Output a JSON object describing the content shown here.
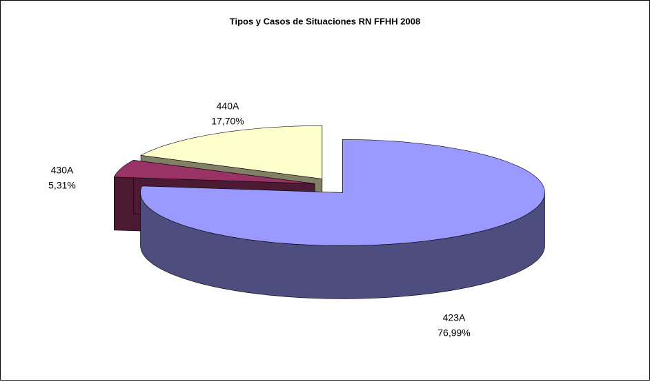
{
  "chart_data": {
    "type": "pie3d",
    "title": "Tipos y Casos de Situaciones RN FFHH 2008",
    "categories": [
      "423A",
      "430A",
      "440A"
    ],
    "values": [
      76.99,
      5.31,
      17.7
    ],
    "value_labels": [
      "76,99%",
      "5,31%",
      "17,70%"
    ],
    "colors": [
      "#9999ff",
      "#993366",
      "#ffffcc"
    ]
  }
}
